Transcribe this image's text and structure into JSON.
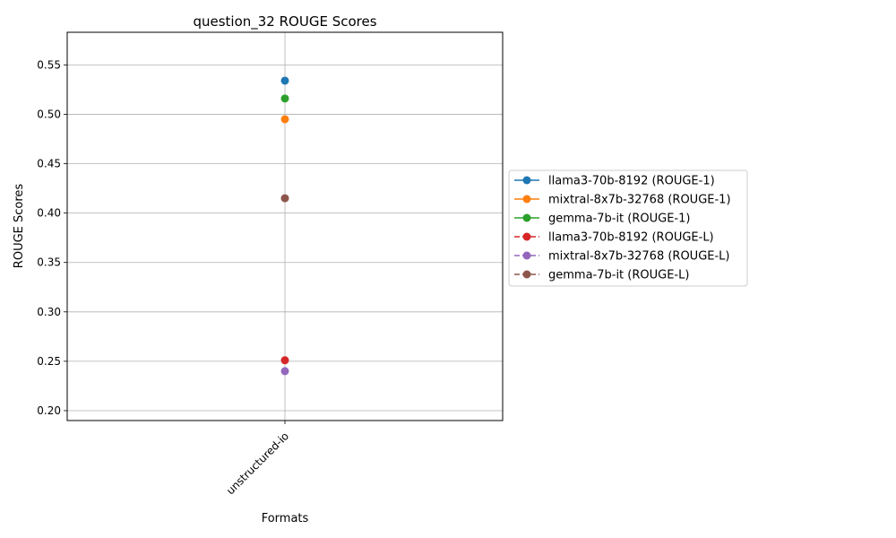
{
  "chart_data": {
    "type": "line",
    "title": "question_32 ROUGE Scores",
    "xlabel": "Formats",
    "ylabel": "ROUGE Scores",
    "categories": [
      "unstructured-io"
    ],
    "ylim": [
      0.19,
      0.583
    ],
    "yticks": [
      "0.20",
      "0.25",
      "0.30",
      "0.35",
      "0.40",
      "0.45",
      "0.50",
      "0.55"
    ],
    "grid": true,
    "legend_position": "right",
    "series": [
      {
        "name": "llama3-70b-8192 (ROUGE-1)",
        "values": [
          0.534
        ],
        "color": "#1f77b4",
        "linestyle": "solid"
      },
      {
        "name": "mixtral-8x7b-32768 (ROUGE-1)",
        "values": [
          0.495
        ],
        "color": "#ff7f0e",
        "linestyle": "solid"
      },
      {
        "name": "gemma-7b-it (ROUGE-1)",
        "values": [
          0.516
        ],
        "color": "#2ca02c",
        "linestyle": "solid"
      },
      {
        "name": "llama3-70b-8192 (ROUGE-L)",
        "values": [
          0.251
        ],
        "color": "#d62728",
        "linestyle": "dashed"
      },
      {
        "name": "mixtral-8x7b-32768 (ROUGE-L)",
        "values": [
          0.24
        ],
        "color": "#9467bd",
        "linestyle": "dashed"
      },
      {
        "name": "gemma-7b-it (ROUGE-L)",
        "values": [
          0.415
        ],
        "color": "#8c564b",
        "linestyle": "dashed"
      }
    ]
  }
}
